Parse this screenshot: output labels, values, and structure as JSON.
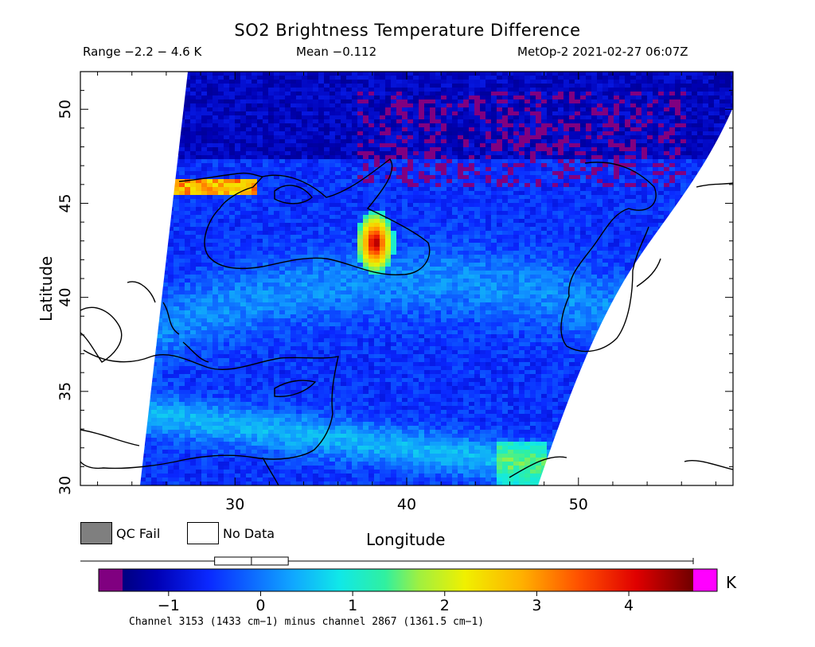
{
  "title": "SO2 Brightness Temperature Difference",
  "header": {
    "range": "Range −2.2 − 4.6 K",
    "mean": "Mean −0.112",
    "source": "MetOp-2 2021-02-27 06:07Z"
  },
  "axes": {
    "xlabel": "Longitude",
    "ylabel": "Latitude",
    "x_ticks": [
      "30",
      "40",
      "50"
    ],
    "y_ticks": [
      "30",
      "35",
      "40",
      "45",
      "50"
    ],
    "lon_range": [
      21,
      59
    ],
    "lat_range": [
      30,
      52
    ]
  },
  "legend": {
    "qc_fail": "QC Fail",
    "no_data": "No Data",
    "qc_fail_color": "#7f7f7f",
    "no_data_color": "#ffffff"
  },
  "colorbar": {
    "unit": "K",
    "range": [
      -1.5,
      4.7
    ],
    "ticks": [
      "−1",
      "0",
      "1",
      "2",
      "3",
      "4"
    ],
    "tick_values": [
      -1,
      0,
      1,
      2,
      3,
      4
    ],
    "under_color": "#800080",
    "over_color": "#ff00ff",
    "box_whisker": {
      "whisker_low": -1.5,
      "q1": -0.5,
      "median": -0.1,
      "q3": 0.3,
      "whisker_high": 4.6
    }
  },
  "footnote": "Channel 3153 (1433 cm−1) minus channel 2867 (1361.5 cm−1)",
  "hotspot": {
    "lon": 38,
    "lat": 43,
    "value": 4.6
  }
}
